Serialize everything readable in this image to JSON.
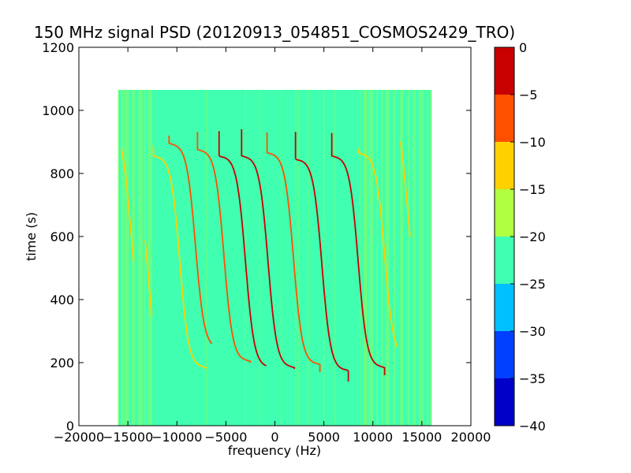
{
  "chart_data": {
    "type": "heatmap",
    "title": "150 MHz signal PSD (20120913_054851_COSMOS2429_TRO)",
    "xlabel": "frequency (Hz)",
    "ylabel": "time (s)",
    "xlim": [
      -20000,
      20000
    ],
    "ylim": [
      0,
      1200
    ],
    "xticks": [
      -20000,
      -15000,
      -10000,
      -5000,
      0,
      5000,
      10000,
      15000,
      20000
    ],
    "xtick_labels": [
      "−20000",
      "−15000",
      "−10000",
      "−5000",
      "0",
      "5000",
      "10000",
      "15000",
      "20000"
    ],
    "yticks": [
      0,
      200,
      400,
      600,
      800,
      1000,
      1200
    ],
    "ytick_labels": [
      "0",
      "200",
      "400",
      "600",
      "800",
      "1000",
      "1200"
    ],
    "data_extent": {
      "x": [
        -16000,
        16000
      ],
      "y": [
        0,
        1065
      ]
    },
    "background_level": -22,
    "colorbar": {
      "levels": [
        -40,
        -35,
        -30,
        -25,
        -20,
        -15,
        -10,
        -5,
        0
      ],
      "tick_labels": [
        "−40",
        "−35",
        "−30",
        "−25",
        "−20",
        "−15",
        "−10",
        "−5",
        "0"
      ],
      "colors": [
        "#0000c8",
        "#0040ff",
        "#00c0ff",
        "#40ffb0",
        "#b0ff40",
        "#ffd000",
        "#ff5000",
        "#c80000"
      ]
    },
    "traces": [
      {
        "x_center": -14700,
        "t_center": 620,
        "half_span": 310,
        "top": 880,
        "bottom": 520,
        "level": -12
      },
      {
        "x_center": -12900,
        "t_center": 470,
        "half_span": 310,
        "top": 590,
        "bottom": 350,
        "level": -13
      },
      {
        "x_center": -9700,
        "t_center": 520,
        "half_span": 320,
        "top": 890,
        "bottom": 180,
        "level": -12
      },
      {
        "x_center": -8100,
        "t_center": 570,
        "half_span": 310,
        "top": 920,
        "bottom": 260,
        "level": -8
      },
      {
        "x_center": -5200,
        "t_center": 540,
        "half_span": 320,
        "top": 935,
        "bottom": 200,
        "level": -6
      },
      {
        "x_center": -3000,
        "t_center": 520,
        "half_span": 320,
        "top": 935,
        "bottom": 190,
        "level": -5
      },
      {
        "x_center": -700,
        "t_center": 520,
        "half_span": 320,
        "top": 940,
        "bottom": 180,
        "level": -3
      },
      {
        "x_center": 1900,
        "t_center": 530,
        "half_span": 320,
        "top": 930,
        "bottom": 170,
        "level": -6
      },
      {
        "x_center": 4800,
        "t_center": 510,
        "half_span": 320,
        "top": 935,
        "bottom": 140,
        "level": -4
      },
      {
        "x_center": 8500,
        "t_center": 520,
        "half_span": 320,
        "top": 930,
        "bottom": 160,
        "level": -5
      },
      {
        "x_center": 11200,
        "t_center": 540,
        "half_span": 310,
        "top": 880,
        "bottom": 250,
        "level": -14
      },
      {
        "x_center": 13500,
        "t_center": 700,
        "half_span": 300,
        "top": 900,
        "bottom": 600,
        "level": -15
      }
    ]
  }
}
